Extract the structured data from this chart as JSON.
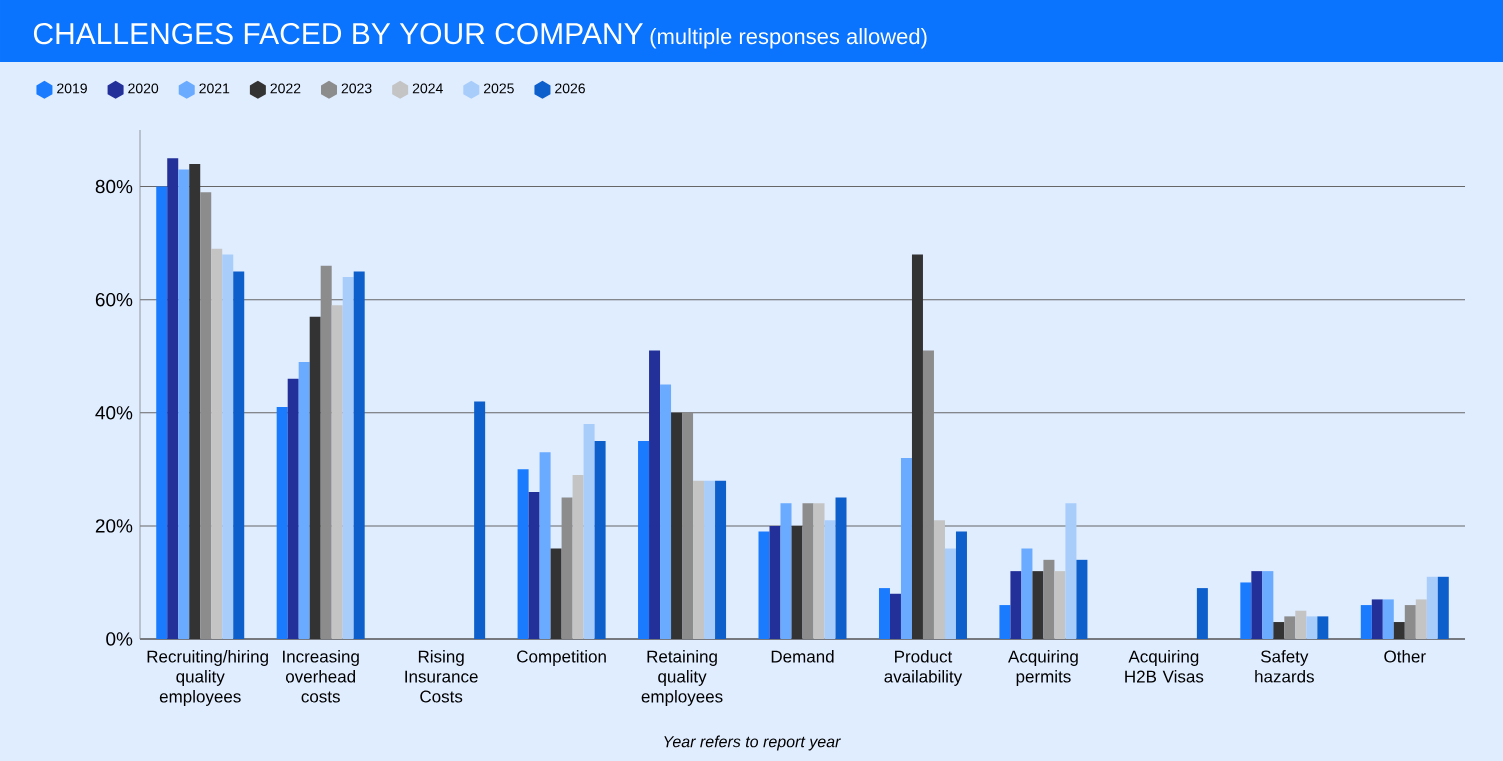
{
  "chart_data": {
    "type": "bar",
    "title": "CHALLENGES FACED BY YOUR COMPANY",
    "subtitle": "(multiple responses allowed)",
    "categories": [
      "Recruiting/hiring quality employees",
      "Increasing overhead costs",
      "Rising Insurance Costs",
      "Competition",
      "Retaining quality employees",
      "Demand",
      "Product availability",
      "Acquiring permits",
      "Acquiring H2B Visas",
      "Safety hazards",
      "Other"
    ],
    "series": [
      {
        "name": "2019",
        "color": "#1a7bff",
        "values": [
          80,
          41,
          null,
          30,
          35,
          19,
          9,
          6,
          null,
          10,
          6
        ]
      },
      {
        "name": "2020",
        "color": "#23309a",
        "values": [
          85,
          46,
          null,
          26,
          51,
          20,
          8,
          12,
          null,
          12,
          7
        ]
      },
      {
        "name": "2021",
        "color": "#6aaaff",
        "values": [
          83,
          49,
          null,
          33,
          45,
          24,
          32,
          16,
          null,
          12,
          7
        ]
      },
      {
        "name": "2022",
        "color": "#333333",
        "values": [
          84,
          57,
          null,
          16,
          40,
          20,
          68,
          12,
          null,
          3,
          3
        ]
      },
      {
        "name": "2023",
        "color": "#8c8c8c",
        "values": [
          79,
          66,
          null,
          25,
          40,
          24,
          51,
          14,
          null,
          4,
          6
        ]
      },
      {
        "name": "2024",
        "color": "#c4c4c4",
        "values": [
          69,
          59,
          null,
          29,
          28,
          24,
          21,
          12,
          null,
          5,
          7
        ]
      },
      {
        "name": "2025",
        "color": "#a8cdfb",
        "values": [
          68,
          64,
          null,
          38,
          28,
          21,
          16,
          24,
          null,
          4,
          11
        ]
      },
      {
        "name": "2026",
        "color": "#0d5fcc",
        "values": [
          65,
          65,
          42,
          35,
          28,
          25,
          19,
          14,
          9,
          4,
          11
        ]
      }
    ],
    "ylim": [
      0,
      90
    ],
    "yticks": [
      {
        "value": 0,
        "label": "0%"
      },
      {
        "value": 20,
        "label": "20%"
      },
      {
        "value": 40,
        "label": "40%"
      },
      {
        "value": 60,
        "label": "60%"
      },
      {
        "value": 80,
        "label": "80%"
      }
    ],
    "grid": "y",
    "legend": "top left",
    "annotations": [
      "Year refers to report year"
    ]
  }
}
